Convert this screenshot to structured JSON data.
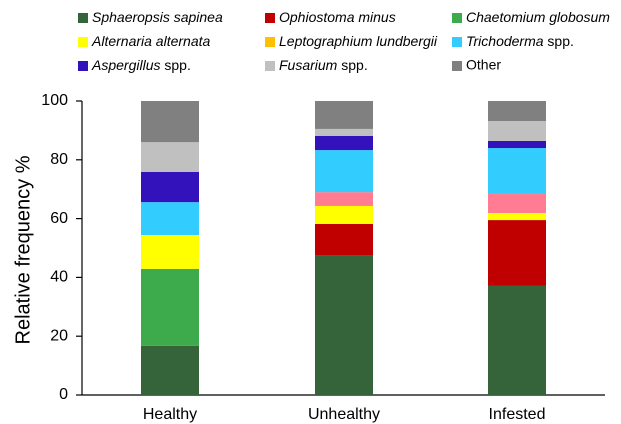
{
  "chart_data": {
    "type": "stacked_bar",
    "ylabel": "Relative frequency %",
    "categories": [
      "Healthy",
      "Unhealthy",
      "Infested"
    ],
    "ylim": [
      0,
      100
    ],
    "yticks": [
      0,
      20,
      40,
      60,
      80,
      100
    ],
    "series": [
      {
        "name": "Sphaeropsis sapinea",
        "color": "#35633a",
        "values": [
          16.7,
          47.6,
          37.1
        ]
      },
      {
        "name": "Ophiostoma minus",
        "color": "#c00000",
        "values": [
          0,
          10.6,
          22.4
        ]
      },
      {
        "name": "Chaetomium globosum",
        "color": "#3dab4c",
        "values": [
          26.2,
          0,
          0
        ]
      },
      {
        "name": "Alternaria alternata",
        "color": "#ffff00",
        "values": [
          11.5,
          6.1,
          2.4
        ]
      },
      {
        "name": "Leptographium lundbergii",
        "color": "#ffc000",
        "values": [
          0,
          0,
          0
        ]
      },
      {
        "name": null,
        "color": "#ff7c93",
        "values": [
          0,
          4.7,
          6.8
        ]
      },
      {
        "name": "Trichoderma spp.",
        "color": "#33ccff",
        "values": [
          11.2,
          14.3,
          15.3
        ]
      },
      {
        "name": "Aspergillus spp.",
        "color": "#3311bb",
        "values": [
          10.3,
          4.8,
          2.4
        ]
      },
      {
        "name": "Fusarium spp.",
        "color": "#c0c0c0",
        "values": [
          10.1,
          2.4,
          6.8
        ]
      },
      {
        "name": "Other",
        "color": "#808080",
        "values": [
          14,
          9.5,
          6.8
        ]
      }
    ]
  }
}
